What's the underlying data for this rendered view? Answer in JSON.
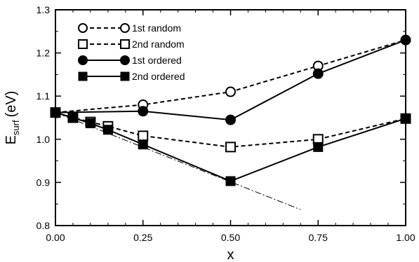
{
  "chart_data": {
    "type": "line",
    "xlabel": "x",
    "ylabel_main": "E",
    "ylabel_sub": "surf",
    "ylabel_unit": "(eV)",
    "xlim": [
      0,
      1
    ],
    "ylim": [
      0.8,
      1.3
    ],
    "x_ticks": [
      0,
      0.25,
      0.5,
      0.75,
      1.0
    ],
    "x_tick_labels": [
      "0.00",
      "0.25",
      "0.50",
      "0.75",
      "1.00"
    ],
    "y_ticks": [
      0.8,
      0.9,
      1.0,
      1.1,
      1.2,
      1.3
    ],
    "y_tick_labels": [
      "0.8",
      "0.9",
      "1.0",
      "1.1",
      "1.2",
      "1.3"
    ],
    "grid": false,
    "legend_position": "top-left",
    "series": [
      {
        "name": "1st random",
        "marker": "open-circle",
        "line": "dashed",
        "points": [
          [
            0,
            1.062
          ],
          [
            0.25,
            1.08
          ],
          [
            0.5,
            1.11
          ],
          [
            0.75,
            1.17
          ],
          [
            1.0,
            1.23
          ]
        ]
      },
      {
        "name": "2nd random",
        "marker": "open-square",
        "line": "dashed",
        "points": [
          [
            0,
            1.062
          ],
          [
            0.05,
            1.05
          ],
          [
            0.1,
            1.04
          ],
          [
            0.15,
            1.03
          ],
          [
            0.25,
            1.008
          ],
          [
            0.5,
            0.982
          ],
          [
            0.75,
            1.0
          ],
          [
            1.0,
            1.048
          ]
        ]
      },
      {
        "name": "1st ordered",
        "marker": "filled-circle",
        "line": "solid",
        "points": [
          [
            0,
            1.062
          ],
          [
            0.25,
            1.065
          ],
          [
            0.5,
            1.045
          ],
          [
            0.75,
            1.152
          ],
          [
            1.0,
            1.23
          ]
        ]
      },
      {
        "name": "2nd ordered",
        "marker": "filled-square",
        "line": "solid",
        "points": [
          [
            0,
            1.062
          ],
          [
            0.05,
            1.05
          ],
          [
            0.1,
            1.037
          ],
          [
            0.15,
            1.022
          ],
          [
            0.25,
            0.988
          ],
          [
            0.5,
            0.903
          ],
          [
            0.75,
            0.982
          ],
          [
            1.0,
            1.048
          ]
        ]
      }
    ],
    "reference_line": {
      "style": "dash-dot",
      "points": [
        [
          0,
          1.062
        ],
        [
          0.7,
          0.837
        ]
      ]
    }
  }
}
